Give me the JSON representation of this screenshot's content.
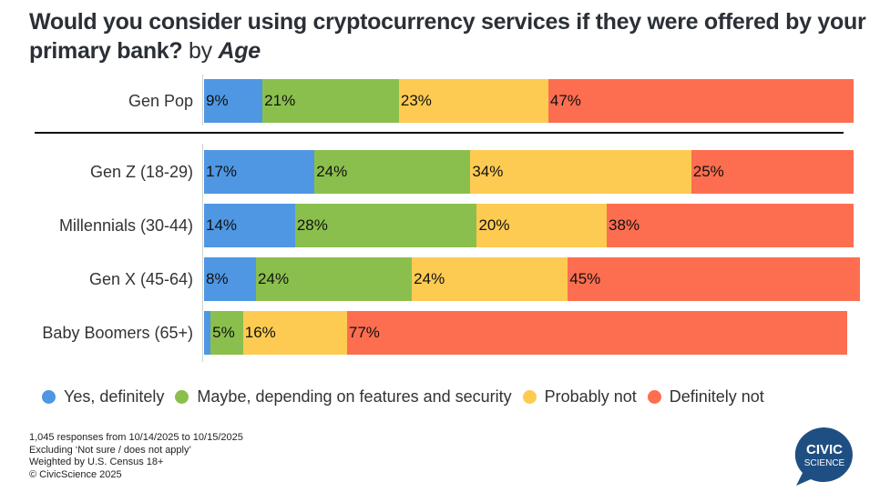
{
  "title": {
    "main": "Would you consider using cryptocurrency services if they were offered by your primary bank?",
    "by": "by",
    "dimension": "Age"
  },
  "chart_data": {
    "type": "bar",
    "orientation": "horizontal-stacked-100",
    "title": "Would you consider using cryptocurrency services if they were offered by your primary bank? by Age",
    "xlabel": "",
    "ylabel": "",
    "xlim": [
      0,
      100
    ],
    "grid": false,
    "legend_position": "bottom",
    "categories": [
      "Gen Pop",
      "Gen Z (18-29)",
      "Millennials (30-44)",
      "Gen X (45-64)",
      "Baby Boomers (65+)"
    ],
    "series": [
      {
        "name": "Yes, definitely",
        "color": "#4f97e3",
        "values": [
          9,
          17,
          14,
          8,
          1
        ],
        "labels": [
          "9%",
          "17%",
          "14%",
          "8%",
          ""
        ]
      },
      {
        "name": "Maybe, depending on features and security",
        "color": "#8bbf4d",
        "values": [
          21,
          24,
          28,
          24,
          5
        ],
        "labels": [
          "21%",
          "24%",
          "28%",
          "24%",
          "5%"
        ]
      },
      {
        "name": "Probably not",
        "color": "#fdcb52",
        "values": [
          23,
          34,
          20,
          24,
          16
        ],
        "labels": [
          "23%",
          "34%",
          "20%",
          "24%",
          "16%"
        ]
      },
      {
        "name": "Definitely not",
        "color": "#fd6e50",
        "values": [
          47,
          25,
          38,
          45,
          77
        ],
        "labels": [
          "47%",
          "25%",
          "38%",
          "45%",
          "77%"
        ]
      }
    ]
  },
  "notes": [
    "1,045 responses from 10/14/2025 to 10/15/2025",
    "Excluding ‘Not sure / does not apply’",
    "Weighted by U.S. Census 18+",
    "© CivicScience 2025"
  ],
  "logo": {
    "line1": "CIVIC",
    "line2": "SCIENCE",
    "color": "#1f4f82"
  }
}
